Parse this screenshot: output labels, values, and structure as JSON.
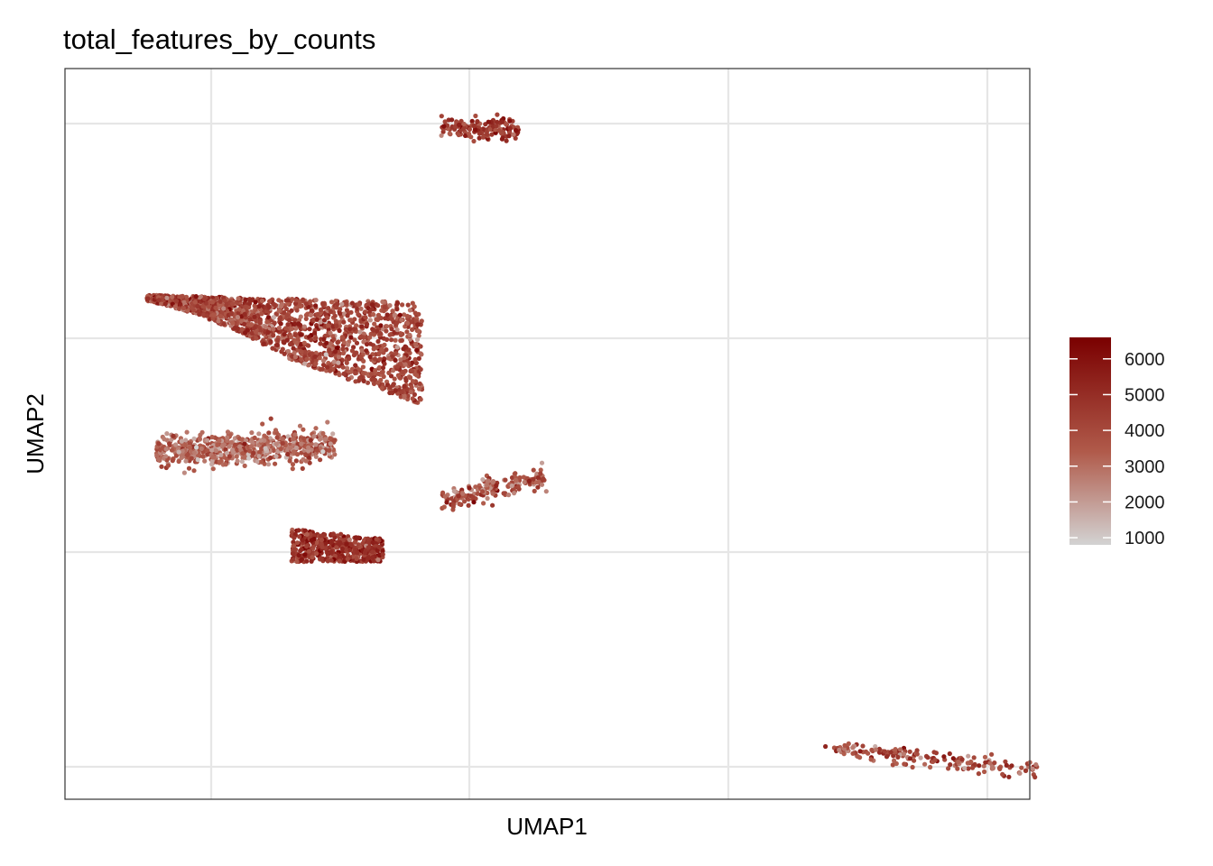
{
  "chart_data": {
    "type": "scatter",
    "title": "total_features_by_counts",
    "xlabel": "UMAP1",
    "ylabel": "UMAP2",
    "x_ticks_labeled": false,
    "y_ticks_labeled": false,
    "grid": true,
    "legend": {
      "position": "right",
      "type": "colorbar",
      "ticks": [
        "6000",
        "5000",
        "4000",
        "3000",
        "2000",
        "1000"
      ],
      "range": [
        800,
        6600
      ],
      "low_color": "#d3d3d3",
      "mid_color": "#b05a4a",
      "high_color": "#7a0000"
    },
    "clusters": [
      {
        "cx": 0.37,
        "cy": 0.91,
        "spread": 0.03,
        "count": 150,
        "mean_value": 4700
      },
      {
        "cx": 0.16,
        "cy": 0.66,
        "spread": 0.08,
        "count": 1800,
        "mean_value": 4100
      },
      {
        "cx": 0.14,
        "cy": 0.5,
        "spread": 0.09,
        "count": 650,
        "mean_value": 3200
      },
      {
        "cx": 0.34,
        "cy": 0.41,
        "spread": 0.06,
        "count": 180,
        "mean_value": 3800
      },
      {
        "cx": 0.21,
        "cy": 0.34,
        "spread": 0.05,
        "count": 420,
        "mean_value": 4800
      },
      {
        "cx": 0.86,
        "cy": 0.05,
        "spread": 0.08,
        "count": 160,
        "mean_value": 3900
      }
    ]
  }
}
